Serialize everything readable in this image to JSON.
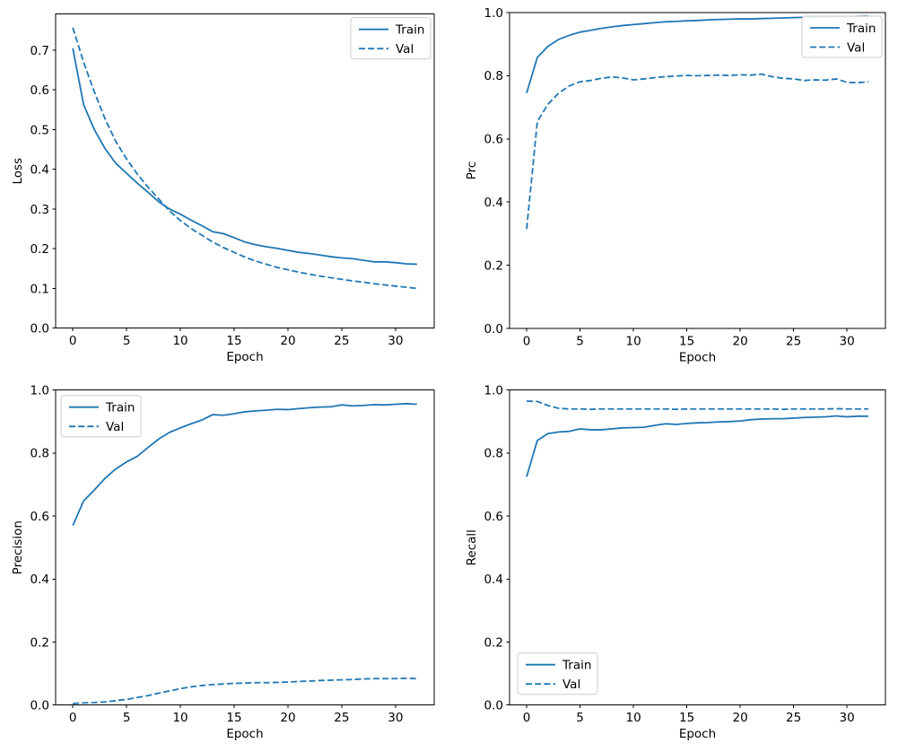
{
  "figure": {
    "background": "#ffffff",
    "line_color": "#1f77b4",
    "text_color": "#000000",
    "spine_color": "#000000",
    "legend_border_color": "#cccccc",
    "legend_background": "#ffffff"
  },
  "chart_data": [
    {
      "type": "line",
      "title": "",
      "xlabel": "Epoch",
      "ylabel": "Loss",
      "xlim": [
        -1.6,
        33.6
      ],
      "ylim": [
        0,
        0.791
      ],
      "grid": false,
      "legend_loc": "upper right",
      "legend_entries": [
        "Train",
        "Val"
      ],
      "xticks": {
        "values": [
          0,
          5,
          10,
          15,
          20,
          25,
          30
        ],
        "labels": [
          "0",
          "5",
          "10",
          "15",
          "20",
          "25",
          "30"
        ]
      },
      "yticks": {
        "values": [
          0.0,
          0.1,
          0.2,
          0.3,
          0.4,
          0.5,
          0.6,
          0.7
        ],
        "labels": [
          "0.0",
          "0.1",
          "0.2",
          "0.3",
          "0.4",
          "0.5",
          "0.6",
          "0.7"
        ]
      },
      "x": [
        0,
        1,
        2,
        3,
        4,
        5,
        6,
        7,
        8,
        9,
        10,
        11,
        12,
        13,
        14,
        15,
        16,
        17,
        18,
        19,
        20,
        21,
        22,
        23,
        24,
        25,
        26,
        27,
        28,
        29,
        30,
        31,
        32
      ],
      "series": [
        {
          "name": "Train",
          "style": "solid",
          "values": [
            0.705,
            0.563,
            0.5,
            0.452,
            0.415,
            0.39,
            0.365,
            0.342,
            0.318,
            0.3,
            0.287,
            0.272,
            0.258,
            0.243,
            0.238,
            0.228,
            0.217,
            0.21,
            0.205,
            0.201,
            0.196,
            0.191,
            0.188,
            0.184,
            0.18,
            0.177,
            0.175,
            0.171,
            0.167,
            0.167,
            0.165,
            0.162,
            0.161
          ]
        },
        {
          "name": "Val",
          "style": "dashed",
          "values": [
            0.757,
            0.67,
            0.595,
            0.527,
            0.47,
            0.426,
            0.388,
            0.355,
            0.325,
            0.295,
            0.271,
            0.251,
            0.234,
            0.217,
            0.203,
            0.191,
            0.179,
            0.169,
            0.161,
            0.153,
            0.147,
            0.141,
            0.136,
            0.131,
            0.127,
            0.123,
            0.119,
            0.116,
            0.112,
            0.109,
            0.106,
            0.103,
            0.1
          ]
        }
      ]
    },
    {
      "type": "line",
      "title": "",
      "xlabel": "Epoch",
      "ylabel": "Prc",
      "xlim": [
        -1.6,
        33.6
      ],
      "ylim": [
        0,
        1.0
      ],
      "grid": false,
      "legend_loc": "upper right",
      "legend_entries": [
        "Train",
        "Val"
      ],
      "xticks": {
        "values": [
          0,
          5,
          10,
          15,
          20,
          25,
          30
        ],
        "labels": [
          "0",
          "5",
          "10",
          "15",
          "20",
          "25",
          "30"
        ]
      },
      "yticks": {
        "values": [
          0.0,
          0.2,
          0.4,
          0.6,
          0.8,
          1.0
        ],
        "labels": [
          "0.0",
          "0.2",
          "0.4",
          "0.6",
          "0.8",
          "1.0"
        ]
      },
      "x": [
        0,
        1,
        2,
        3,
        4,
        5,
        6,
        7,
        8,
        9,
        10,
        11,
        12,
        13,
        14,
        15,
        16,
        17,
        18,
        19,
        20,
        21,
        22,
        23,
        24,
        25,
        26,
        27,
        28,
        29,
        30,
        31,
        32
      ],
      "series": [
        {
          "name": "Train",
          "style": "solid",
          "values": [
            0.745,
            0.858,
            0.893,
            0.915,
            0.928,
            0.938,
            0.944,
            0.95,
            0.955,
            0.959,
            0.962,
            0.965,
            0.968,
            0.971,
            0.972,
            0.974,
            0.975,
            0.977,
            0.978,
            0.979,
            0.98,
            0.98,
            0.981,
            0.982,
            0.983,
            0.984,
            0.985,
            0.985,
            0.986,
            0.987,
            0.987,
            0.988,
            0.989
          ]
        },
        {
          "name": "Val",
          "style": "dashed",
          "values": [
            0.315,
            0.655,
            0.71,
            0.745,
            0.768,
            0.781,
            0.785,
            0.792,
            0.796,
            0.793,
            0.787,
            0.79,
            0.794,
            0.797,
            0.799,
            0.801,
            0.8,
            0.801,
            0.802,
            0.801,
            0.803,
            0.802,
            0.805,
            0.797,
            0.792,
            0.79,
            0.785,
            0.787,
            0.786,
            0.79,
            0.779,
            0.778,
            0.781
          ]
        }
      ]
    },
    {
      "type": "line",
      "title": "",
      "xlabel": "Epoch",
      "ylabel": "Precision",
      "xlim": [
        -1.6,
        33.6
      ],
      "ylim": [
        0,
        1.0
      ],
      "grid": false,
      "legend_loc": "upper left",
      "legend_entries": [
        "Train",
        "Val"
      ],
      "xticks": {
        "values": [
          0,
          5,
          10,
          15,
          20,
          25,
          30
        ],
        "labels": [
          "0",
          "5",
          "10",
          "15",
          "20",
          "25",
          "30"
        ]
      },
      "yticks": {
        "values": [
          0.0,
          0.2,
          0.4,
          0.6,
          0.8,
          1.0
        ],
        "labels": [
          "0.0",
          "0.2",
          "0.4",
          "0.6",
          "0.8",
          "1.0"
        ]
      },
      "x": [
        0,
        1,
        2,
        3,
        4,
        5,
        6,
        7,
        8,
        9,
        10,
        11,
        12,
        13,
        14,
        15,
        16,
        17,
        18,
        19,
        20,
        21,
        22,
        23,
        24,
        25,
        26,
        27,
        28,
        29,
        30,
        31,
        32
      ],
      "series": [
        {
          "name": "Train",
          "style": "solid",
          "values": [
            0.57,
            0.648,
            0.683,
            0.72,
            0.75,
            0.772,
            0.79,
            0.818,
            0.845,
            0.866,
            0.88,
            0.893,
            0.905,
            0.922,
            0.92,
            0.925,
            0.931,
            0.934,
            0.936,
            0.939,
            0.938,
            0.941,
            0.944,
            0.946,
            0.947,
            0.953,
            0.95,
            0.951,
            0.954,
            0.953,
            0.955,
            0.957,
            0.955
          ]
        },
        {
          "name": "Val",
          "style": "dashed",
          "values": [
            0.005,
            0.007,
            0.008,
            0.01,
            0.014,
            0.018,
            0.024,
            0.03,
            0.038,
            0.045,
            0.052,
            0.058,
            0.062,
            0.065,
            0.067,
            0.069,
            0.07,
            0.071,
            0.071,
            0.072,
            0.073,
            0.075,
            0.076,
            0.078,
            0.079,
            0.08,
            0.081,
            0.083,
            0.084,
            0.084,
            0.084,
            0.085,
            0.084
          ]
        }
      ]
    },
    {
      "type": "line",
      "title": "",
      "xlabel": "Epoch",
      "ylabel": "Recall",
      "xlim": [
        -1.6,
        33.6
      ],
      "ylim": [
        0,
        1.0
      ],
      "grid": false,
      "legend_loc": "lower left",
      "legend_entries": [
        "Train",
        "Val"
      ],
      "xticks": {
        "values": [
          0,
          5,
          10,
          15,
          20,
          25,
          30
        ],
        "labels": [
          "0",
          "5",
          "10",
          "15",
          "20",
          "25",
          "30"
        ]
      },
      "yticks": {
        "values": [
          0.0,
          0.2,
          0.4,
          0.6,
          0.8,
          1.0
        ],
        "labels": [
          "0.0",
          "0.2",
          "0.4",
          "0.6",
          "0.8",
          "1.0"
        ]
      },
      "x": [
        0,
        1,
        2,
        3,
        4,
        5,
        6,
        7,
        8,
        9,
        10,
        11,
        12,
        13,
        14,
        15,
        16,
        17,
        18,
        19,
        20,
        21,
        22,
        23,
        24,
        25,
        26,
        27,
        28,
        29,
        30,
        31,
        32
      ],
      "series": [
        {
          "name": "Train",
          "style": "solid",
          "values": [
            0.725,
            0.84,
            0.862,
            0.867,
            0.869,
            0.877,
            0.874,
            0.874,
            0.877,
            0.88,
            0.881,
            0.882,
            0.888,
            0.893,
            0.891,
            0.894,
            0.896,
            0.897,
            0.899,
            0.9,
            0.902,
            0.906,
            0.908,
            0.909,
            0.909,
            0.911,
            0.913,
            0.914,
            0.915,
            0.918,
            0.915,
            0.917,
            0.917
          ]
        },
        {
          "name": "Val",
          "style": "dashed",
          "values": [
            0.965,
            0.964,
            0.951,
            0.942,
            0.94,
            0.94,
            0.939,
            0.94,
            0.94,
            0.94,
            0.94,
            0.94,
            0.94,
            0.94,
            0.939,
            0.94,
            0.94,
            0.94,
            0.94,
            0.94,
            0.94,
            0.94,
            0.94,
            0.94,
            0.939,
            0.94,
            0.94,
            0.94,
            0.94,
            0.941,
            0.94,
            0.94,
            0.94
          ]
        }
      ]
    }
  ]
}
